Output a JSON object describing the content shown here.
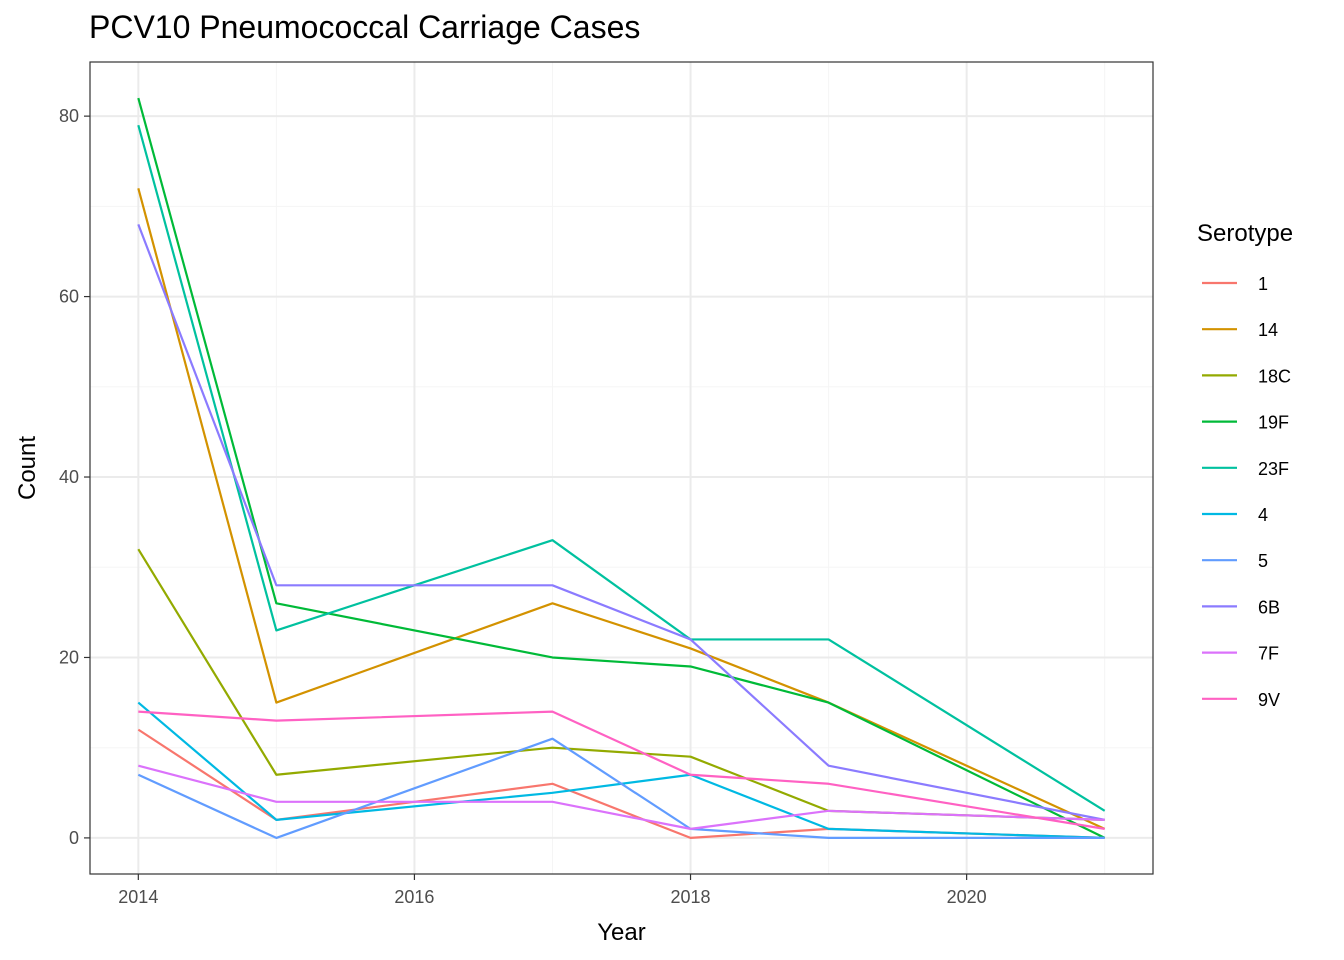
{
  "chart_data": {
    "type": "line",
    "title": "PCV10 Pneumococcal Carriage Cases",
    "xlabel": "Year",
    "ylabel": "Count",
    "xlim": [
      2013.65,
      2021.35
    ],
    "ylim": [
      -4,
      86
    ],
    "x_ticks": [
      2014,
      2016,
      2018,
      2020
    ],
    "y_ticks": [
      0,
      20,
      40,
      60,
      80
    ],
    "x_minor": [
      2015,
      2017,
      2019,
      2021
    ],
    "y_minor": [
      10,
      30,
      50,
      70
    ],
    "grid": true,
    "legend_title": "Serotype",
    "legend_position": "right",
    "x": [
      2014,
      2015,
      2017,
      2018,
      2019,
      2021
    ],
    "series": [
      {
        "name": "1",
        "color": "#F8766D",
        "values": [
          12,
          2,
          6,
          0,
          1,
          0
        ]
      },
      {
        "name": "14",
        "color": "#D39200",
        "values": [
          72,
          15,
          26,
          21,
          15,
          1
        ]
      },
      {
        "name": "18C",
        "color": "#93AA00",
        "values": [
          32,
          7,
          10,
          9,
          3,
          2
        ]
      },
      {
        "name": "19F",
        "color": "#00BA38",
        "values": [
          82,
          26,
          20,
          19,
          15,
          0
        ]
      },
      {
        "name": "23F",
        "color": "#00C19F",
        "values": [
          79,
          23,
          33,
          22,
          22,
          3
        ]
      },
      {
        "name": "4",
        "color": "#00B9E3",
        "values": [
          15,
          2,
          5,
          7,
          1,
          0
        ]
      },
      {
        "name": "5",
        "color": "#619CFF",
        "values": [
          7,
          0,
          11,
          1,
          0,
          0
        ]
      },
      {
        "name": "6B",
        "color": "#8B7BFF",
        "values": [
          68,
          28,
          28,
          22,
          8,
          2
        ]
      },
      {
        "name": "7F",
        "color": "#DB72FB",
        "values": [
          8,
          4,
          4,
          1,
          3,
          2
        ]
      },
      {
        "name": "9V",
        "color": "#FF61C3",
        "values": [
          14,
          13,
          14,
          7,
          6,
          1
        ]
      }
    ]
  },
  "colors": {
    "panel_border": "#333333",
    "grid_major": "#ebebeb",
    "grid_minor": "#f5f5f5",
    "tick_text": "#4d4d4d"
  }
}
